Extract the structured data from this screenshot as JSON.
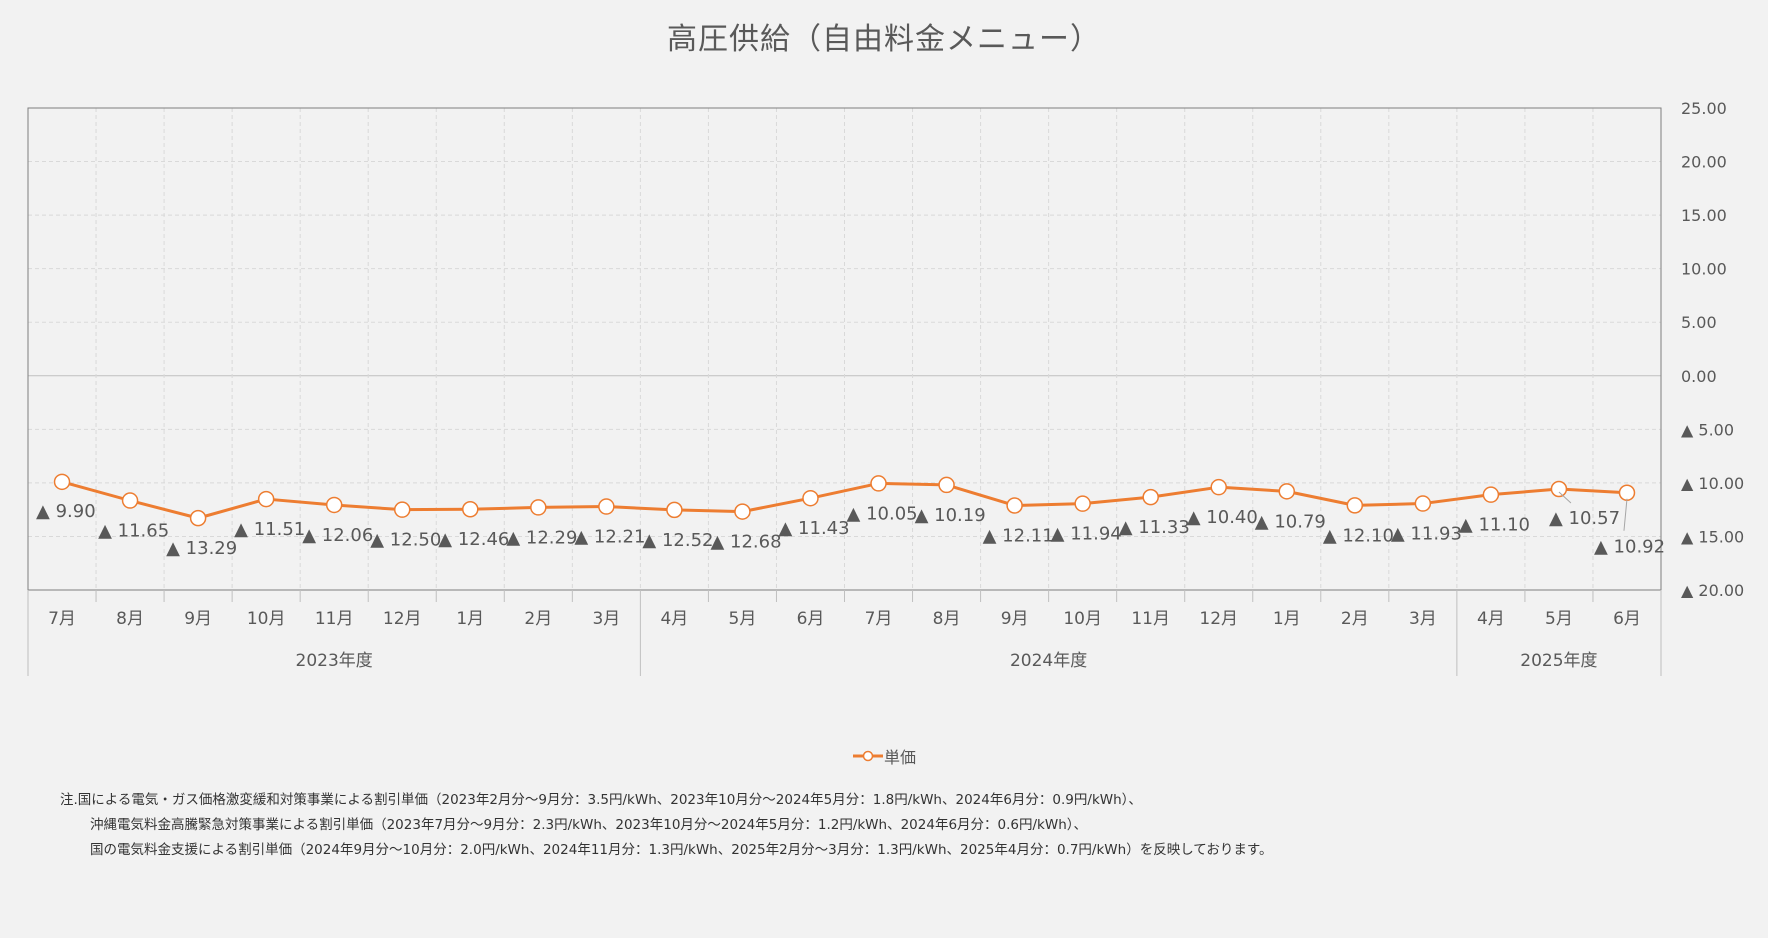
{
  "chart_data": {
    "type": "line",
    "title": "高圧供給（自由料金メニュー）",
    "series": [
      {
        "name": "単価",
        "color": "#ed7d31",
        "values": [
          -9.9,
          -11.65,
          -13.29,
          -11.51,
          -12.06,
          -12.5,
          -12.46,
          -12.29,
          -12.21,
          -12.52,
          -12.68,
          -11.43,
          -10.05,
          -10.19,
          -12.11,
          -11.94,
          -11.33,
          -10.4,
          -10.79,
          -12.1,
          -11.93,
          -11.1,
          -10.57,
          -10.92
        ]
      }
    ],
    "categories": [
      "7月",
      "8月",
      "9月",
      "10月",
      "11月",
      "12月",
      "1月",
      "2月",
      "3月",
      "4月",
      "5月",
      "6月",
      "7月",
      "8月",
      "9月",
      "10月",
      "11月",
      "12月",
      "1月",
      "2月",
      "3月",
      "4月",
      "5月",
      "6月"
    ],
    "data_labels": [
      "▲ 9.90",
      "▲ 11.65",
      "▲ 13.29",
      "▲ 11.51",
      "▲ 12.06",
      "▲ 12.50",
      "▲ 12.46",
      "▲ 12.29",
      "▲ 12.21",
      "▲ 12.52",
      "▲ 12.68",
      "▲ 11.43",
      "▲ 10.05",
      "▲ 10.19",
      "▲ 12.11",
      "▲ 11.94",
      "▲ 11.33",
      "▲ 10.40",
      "▲ 10.79",
      "▲ 12.10",
      "▲ 11.93",
      "▲ 11.10",
      "▲ 10.57",
      "▲ 10.92"
    ],
    "groups": [
      {
        "label": "2023年度",
        "count": 9
      },
      {
        "label": "2024年度",
        "count": 12
      },
      {
        "label": "2025年度",
        "count": 3
      }
    ],
    "y_axis": {
      "position": "right",
      "ylim": [
        -20,
        25
      ],
      "ticks": [
        25,
        20,
        15,
        10,
        5,
        0,
        -5,
        -10,
        -15,
        -20
      ],
      "tick_labels": [
        "25.00",
        "20.00",
        "15.00",
        "10.00",
        "5.00",
        "0.00",
        "▲ 5.00",
        "▲ 10.00",
        "▲ 15.00",
        "▲ 20.00"
      ]
    },
    "grid": true,
    "legend_position": "bottom",
    "marker": "circle-white-fill"
  },
  "notes": [
    "注.国による電気・ガス価格激変緩和対策事業による割引単価（2023年2月分～9月分：3.5円/kWh、2023年10月分～2024年5月分：1.8円/kWh、2024年6月分：0.9円/kWh）、",
    "沖縄電気料金高騰緊急対策事業による割引単価（2023年7月分～9月分：2.3円/kWh、2023年10月分～2024年5月分：1.2円/kWh、2024年6月分：0.6円/kWh）、",
    "国の電気料金支援による割引単価（2024年9月分～10月分：2.0円/kWh、2024年11月分：1.3円/kWh、2025年2月分～3月分：1.3円/kWh、2025年4月分：0.7円/kWh）を反映しております。"
  ],
  "colors": {
    "line": "#ed7d31",
    "text": "#595959",
    "grid": "#d9d9d9",
    "border": "#7f7f7f",
    "background": "#f2f2f2"
  }
}
